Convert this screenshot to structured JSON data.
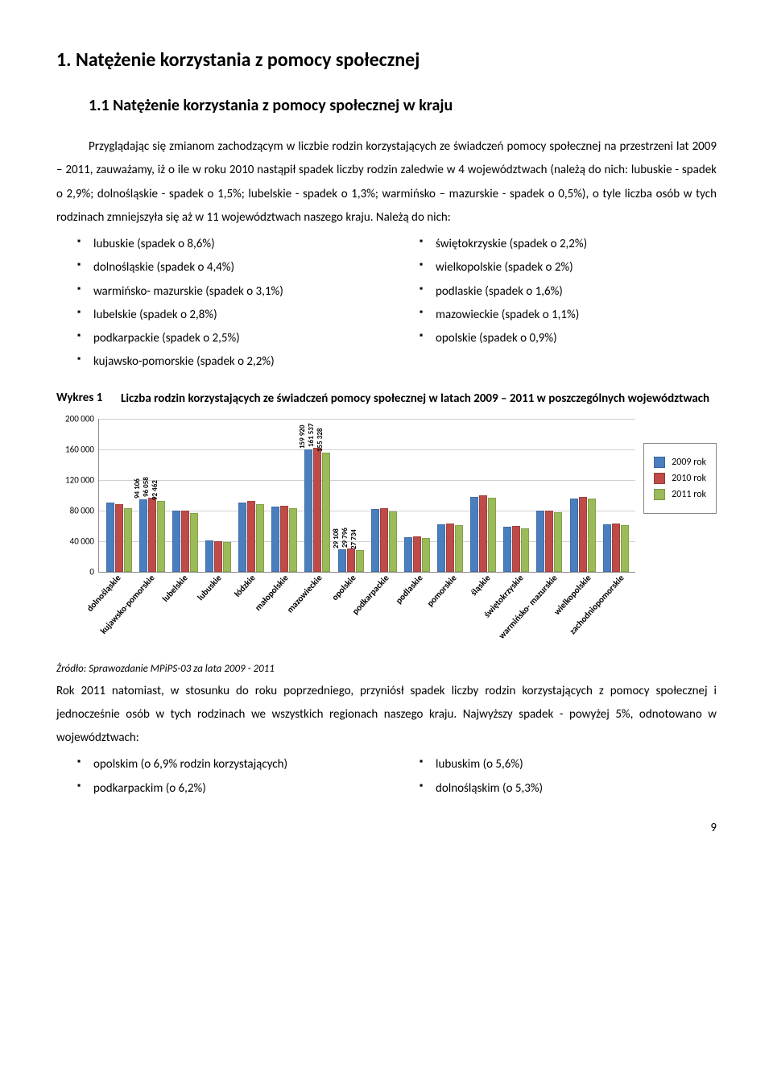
{
  "heading1": "1. Natężenie korzystania z pomocy społecznej",
  "heading2": "1.1 Natężenie korzystania z pomocy społecznej w kraju",
  "para1": "Przyglądając się zmianom zachodzącym w liczbie rodzin korzystających ze świadczeń pomocy społecznej na przestrzeni lat 2009 – 2011, zauważamy, iż o ile w roku 2010 nastąpił spadek liczby rodzin zaledwie w 4 województwach (należą do nich: lubuskie - spadek o 2,9%; dolnośląskie - spadek o 1,5%; lubelskie - spadek o 1,3%; warmińsko – mazurskie - spadek o 0,5%), o tyle liczba osób w tych rodzinach zmniejszyła się aż w 11 województwach naszego kraju. Należą do nich:",
  "list_left1": [
    "lubuskie (spadek o 8,6%)",
    "dolnośląskie (spadek o 4,4%)",
    "warmińsko- mazurskie (spadek o 3,1%)",
    "lubelskie (spadek o 2,8%)",
    "podkarpackie (spadek o 2,5%)",
    "kujawsko-pomorskie (spadek o 2,2%)"
  ],
  "list_right1": [
    "świętokrzyskie (spadek o 2,2%)",
    "wielkopolskie (spadek o 2%)",
    "podlaskie (spadek o 1,6%)",
    "mazowieckie (spadek o 1,1%)",
    "opolskie (spadek o 0,9%)"
  ],
  "chart": {
    "label": "Wykres 1",
    "title": "Liczba rodzin korzystających ze świadczeń pomocy społecznej w latach 2009 – 2011 w poszczególnych województwach",
    "type": "bar",
    "ylim": [
      0,
      200000
    ],
    "ytick_step": 40000,
    "y_ticks": [
      "0",
      "40 000",
      "80 000",
      "120 000",
      "160 000",
      "200 000"
    ],
    "grid_color": "#d0d0d0",
    "background_color": "#ffffff",
    "series": [
      {
        "name": "2009 rok",
        "color": "#4a7fbf"
      },
      {
        "name": "2010 rok",
        "color": "#be4b48"
      },
      {
        "name": "2011 rok",
        "color": "#9bbb59"
      }
    ],
    "categories": [
      "dolnośląskie",
      "kujawsko-pomorskie",
      "lubelskie",
      "lubuskie",
      "łódzkie",
      "małopolskie",
      "mazowieckie",
      "opolskie",
      "podkarpackie",
      "podlaskie",
      "pomorskie",
      "śląskie",
      "świętokrzyskie",
      "warmińsko- mazurskie",
      "wielkopolskie",
      "zachodniopomorskie"
    ],
    "data": {
      "2009": [
        90000,
        94106,
        80000,
        41000,
        90000,
        85000,
        159920,
        29108,
        82000,
        45000,
        62000,
        97000,
        58000,
        80000,
        95000,
        62000
      ],
      "2010": [
        88000,
        96058,
        79000,
        40000,
        92000,
        86000,
        161537,
        29796,
        83000,
        46000,
        63000,
        99000,
        59000,
        80000,
        97000,
        63000
      ],
      "2011": [
        83000,
        92462,
        76000,
        38000,
        88000,
        83000,
        155328,
        27734,
        78000,
        44000,
        61000,
        96000,
        56000,
        77000,
        95000,
        61000
      ]
    },
    "visible_labels": {
      "1": [
        "94 106",
        "96 058",
        "92 462"
      ],
      "6": [
        "159 920",
        "161 537",
        "155 328"
      ],
      "7": [
        "29 108",
        "29 796",
        "27 734"
      ]
    }
  },
  "source": "Źródło: Sprawozdanie MPiPS-03 za lata 2009 - 2011",
  "para2": "Rok 2011 natomiast, w stosunku do roku poprzedniego, przyniósł spadek liczby rodzin korzystających z pomocy społecznej i jednocześnie osób w tych rodzinach we wszystkich regionach naszego kraju. Najwyższy spadek - powyżej 5%, odnotowano w województwach:",
  "list_left2": [
    "opolskim (o 6,9% rodzin korzystających)",
    "podkarpackim (o 6,2%)"
  ],
  "list_right2": [
    "lubuskim (o 5,6%)",
    "dolnośląskim (o 5,3%)"
  ],
  "page_number": "9"
}
